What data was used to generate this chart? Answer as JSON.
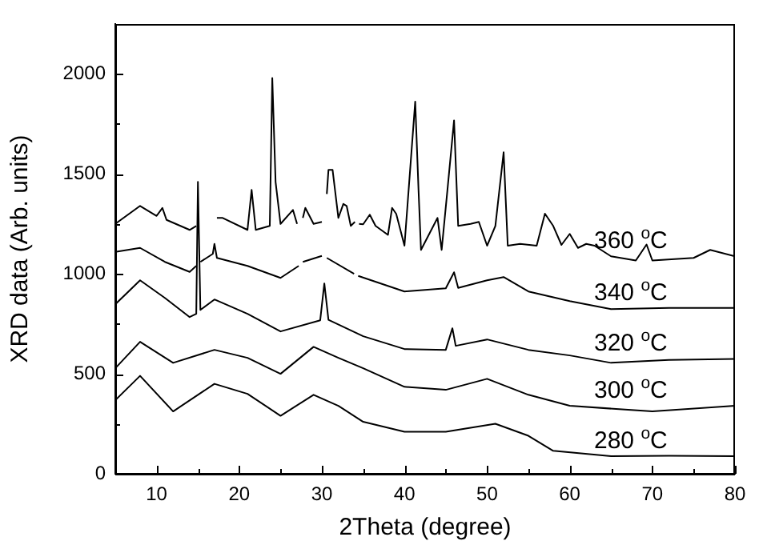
{
  "chart_data": {
    "type": "line",
    "xlabel": "2Theta (degree)",
    "ylabel": "XRD data (Arb. units)",
    "xlim": [
      5,
      80
    ],
    "ylim": [
      0,
      2250
    ],
    "xticks": [
      10,
      {
        "value": 15,
        "label": null
      },
      20,
      {
        "value": 25,
        "label": null
      },
      30,
      {
        "value": 35,
        "label": null
      },
      40,
      {
        "value": 45,
        "label": null
      },
      50,
      {
        "value": 55,
        "label": null
      },
      60,
      {
        "value": 65,
        "label": null
      },
      70,
      {
        "value": 75,
        "label": null
      },
      80
    ],
    "yticks": [
      0,
      {
        "value": 250,
        "label": null
      },
      500,
      {
        "value": 750,
        "label": null
      },
      1000,
      {
        "value": 1250,
        "label": null
      },
      1500,
      {
        "value": 1750,
        "label": null
      },
      2000
    ],
    "grid": false,
    "legend": false,
    "marker": "none",
    "line_style": "solid",
    "series": [
      {
        "name": "280 $^{o}$C",
        "color": "#000000",
        "x": [
          5,
          8,
          12,
          17,
          21,
          25,
          29,
          32,
          35,
          40,
          45,
          51,
          55,
          58,
          65,
          72,
          80
        ],
        "values": [
          368,
          490,
          312,
          450,
          400,
          290,
          395,
          340,
          260,
          210,
          210,
          250,
          190,
          115,
          88,
          90,
          88
        ]
      },
      {
        "name": "300 $^{o}$C",
        "color": "#000000",
        "x": [
          5,
          8,
          12,
          17,
          21,
          25,
          29,
          32,
          35,
          40,
          45,
          50,
          55,
          60,
          70,
          80
        ],
        "values": [
          528,
          660,
          555,
          620,
          580,
          500,
          635,
          580,
          528,
          435,
          420,
          475,
          395,
          340,
          312,
          340
        ]
      },
      {
        "name": "320 $^{o}$C",
        "color": "#000000",
        "x": [
          5,
          8,
          11,
          14,
          14.8,
          15,
          15.3,
          17,
          21,
          25,
          29.8,
          30.3,
          30.8,
          35,
          40,
          45,
          45.8,
          46.2,
          50,
          55,
          60,
          65,
          72,
          80
        ],
        "values": [
          848,
          968,
          880,
          784,
          800,
          1460,
          820,
          872,
          800,
          712,
          768,
          952,
          770,
          688,
          624,
          620,
          728,
          640,
          672,
          620,
          592,
          555,
          570,
          575
        ]
      },
      {
        "name": "340 $^{o}$C",
        "color": "#000000",
        "x": [
          5,
          8,
          11,
          14,
          14.8,
          15,
          15.3,
          16.8,
          17,
          17.3,
          21,
          25,
          27.2,
          27.4,
          27.7,
          30,
          30.3,
          30.6,
          33.9,
          34.1,
          34.4,
          40,
          45,
          46,
          46.5,
          50,
          52,
          55,
          60,
          65,
          72,
          80
        ],
        "values": [
          1110,
          1130,
          1060,
          1010,
          1040,
          null,
          1060,
          1100,
          1150,
          1080,
          1040,
          980,
          1040,
          null,
          1060,
          1090,
          null,
          1080,
          1000,
          null,
          990,
          912,
          928,
          1008,
          930,
          968,
          984,
          912,
          864,
          824,
          830,
          830
        ]
      },
      {
        "name": "360 $^{o}$C",
        "color": "#000000",
        "x": [
          5,
          8,
          10,
          10.7,
          11.2,
          14,
          14.8,
          16,
          17.3,
          18,
          21,
          21.5,
          22,
          23.7,
          24,
          24.4,
          25,
          26.5,
          27,
          27.4,
          27.7,
          28,
          29,
          30,
          30.3,
          30.6,
          30.8,
          31.3,
          32,
          32.6,
          33,
          33.5,
          34,
          34.2,
          34.5,
          35,
          35.8,
          36.5,
          38,
          38.5,
          39,
          40,
          41.3,
          41.7,
          42,
          44,
          44.5,
          45.2,
          46,
          46.5,
          48,
          49,
          50,
          51,
          52,
          52.5,
          54,
          56,
          57,
          58,
          59,
          60,
          61,
          62,
          63,
          65,
          68,
          69.3,
          70,
          75,
          77,
          80
        ],
        "values": [
          1250,
          1340,
          1290,
          1330,
          1270,
          1220,
          1240,
          null,
          1280,
          1280,
          1220,
          1420,
          1220,
          1240,
          1980,
          1460,
          1250,
          1320,
          1250,
          null,
          1280,
          1330,
          1250,
          1260,
          null,
          1400,
          1520,
          1520,
          1280,
          1350,
          1340,
          1240,
          1260,
          null,
          1250,
          1248,
          1296,
          1240,
          1195,
          1330,
          1300,
          1141,
          1862,
          1420,
          1120,
          1280,
          1120,
          1420,
          1768,
          1240,
          1250,
          1260,
          1141,
          1240,
          1608,
          1141,
          1150,
          1141,
          1301,
          1240,
          1145,
          1200,
          1130,
          1150,
          1141,
          1088,
          1067,
          1147,
          1067,
          1080,
          1120,
          1088
        ]
      }
    ]
  }
}
